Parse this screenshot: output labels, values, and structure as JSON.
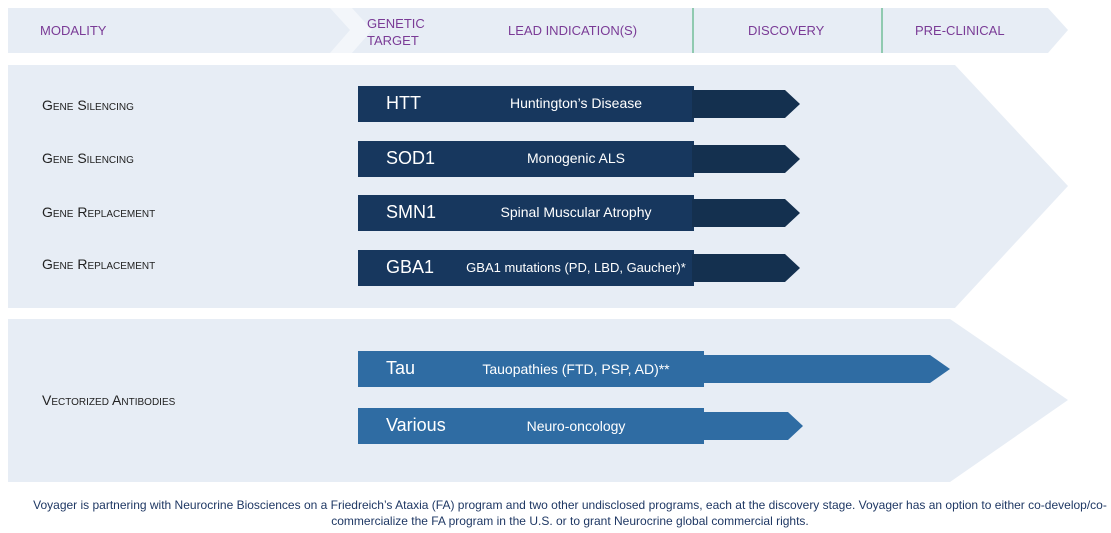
{
  "header": {
    "modality": "MODALITY",
    "genetic_target": "GENETIC TARGET",
    "lead_indications": "LEAD INDICATION(S)",
    "discovery": "DISCOVERY",
    "pre_clinical": "PRE-CLINICAL"
  },
  "rows": [
    {
      "modality": "Gene Silencing",
      "target": "HTT",
      "indication": "Huntington’s Disease"
    },
    {
      "modality": "Gene Silencing",
      "target": "SOD1",
      "indication": "Monogenic ALS"
    },
    {
      "modality": "Gene Replacement",
      "target": "SMN1",
      "indication": "Spinal Muscular Atrophy"
    },
    {
      "modality": "Gene Replacement",
      "target": "GBA1",
      "indication": "GBA1 mutations (PD, LBD, Gaucher)*"
    },
    {
      "modality": "Vectorized Antibodies",
      "target": "Tau",
      "indication": "Tauopathies (FTD, PSP, AD)**"
    },
    {
      "target": "Various",
      "indication": "Neuro-oncology"
    }
  ],
  "footnote": "Voyager is partnering with Neurocrine Biosciences on a Friedreich’s Ataxia (FA) program and two other undisclosed programs, each at the discovery stage. Voyager has an option to either co-develop/co-commercialize the FA program in the U.S. or to grant Neurocrine global commercial rights."
}
